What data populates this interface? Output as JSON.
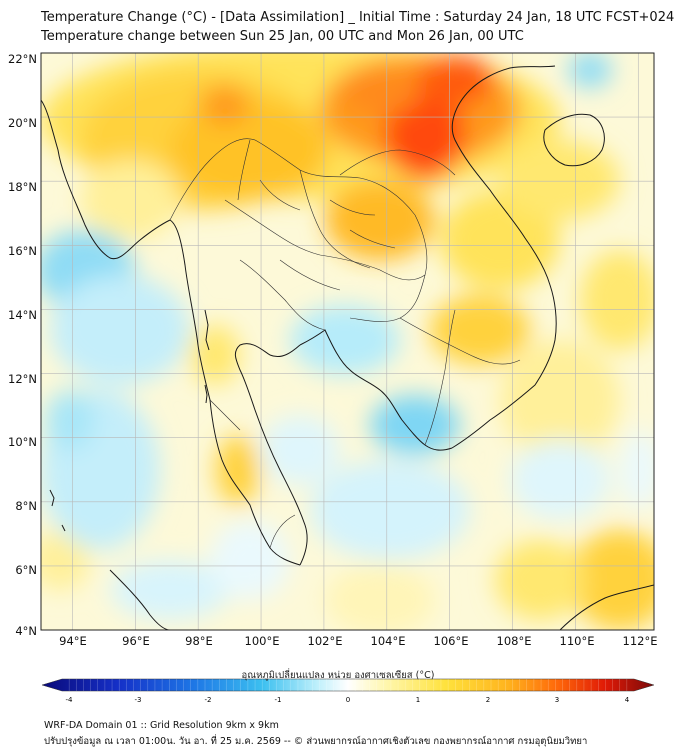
{
  "header": {
    "title_line1": "Temperature Change (°C) - [Data Assimilation] _ Initial Time : Saturday 24 Jan, 18 UTC FCST+024",
    "title_line2": "Temperature change between Sun 25 Jan, 00 UTC and Mon 26 Jan, 00 UTC"
  },
  "map": {
    "lat_labels": [
      "22°N",
      "20°N",
      "18°N",
      "16°N",
      "14°N",
      "12°N",
      "10°N",
      "8°N",
      "6°N",
      "4°N"
    ],
    "lon_labels": [
      "94°E",
      "96°E",
      "98°E",
      "100°E",
      "102°E",
      "104°E",
      "106°E",
      "108°E",
      "110°E",
      "112°E"
    ],
    "lat_range": [
      4,
      22
    ],
    "lon_range": [
      93,
      112.5
    ],
    "background_color": "#ffffff"
  },
  "colorbar": {
    "label": "อุณหภูมิเปลี่ยนแปลง หน่วย องศาเซลเซียส (°C)",
    "ticks": [
      "-4",
      "-3",
      "-2",
      "-1",
      "0",
      "1",
      "2",
      "3",
      "4"
    ],
    "min": -4,
    "max": 4,
    "colors": [
      "#0a0a7a",
      "#1530c8",
      "#1e78e6",
      "#3cc0f0",
      "#aee8f8",
      "#ffffff",
      "#fff7b0",
      "#ffe23c",
      "#ffb41e",
      "#ff6a0a",
      "#e01a06",
      "#7a0a0a"
    ]
  },
  "footer": {
    "line1": "WRF-DA Domain 01 :: Grid Resolution 9km x 9km",
    "line2": "ปรับปรุงข้อมูล ณ เวลา 01:00น. วัน อา. ที่ 25 ม.ค. 2569 -- © ส่วนพยากรณ์อากาศเชิงตัวเลข กองพยากรณ์อากาศ กรมอุตุนิยมวิทยา"
  }
}
